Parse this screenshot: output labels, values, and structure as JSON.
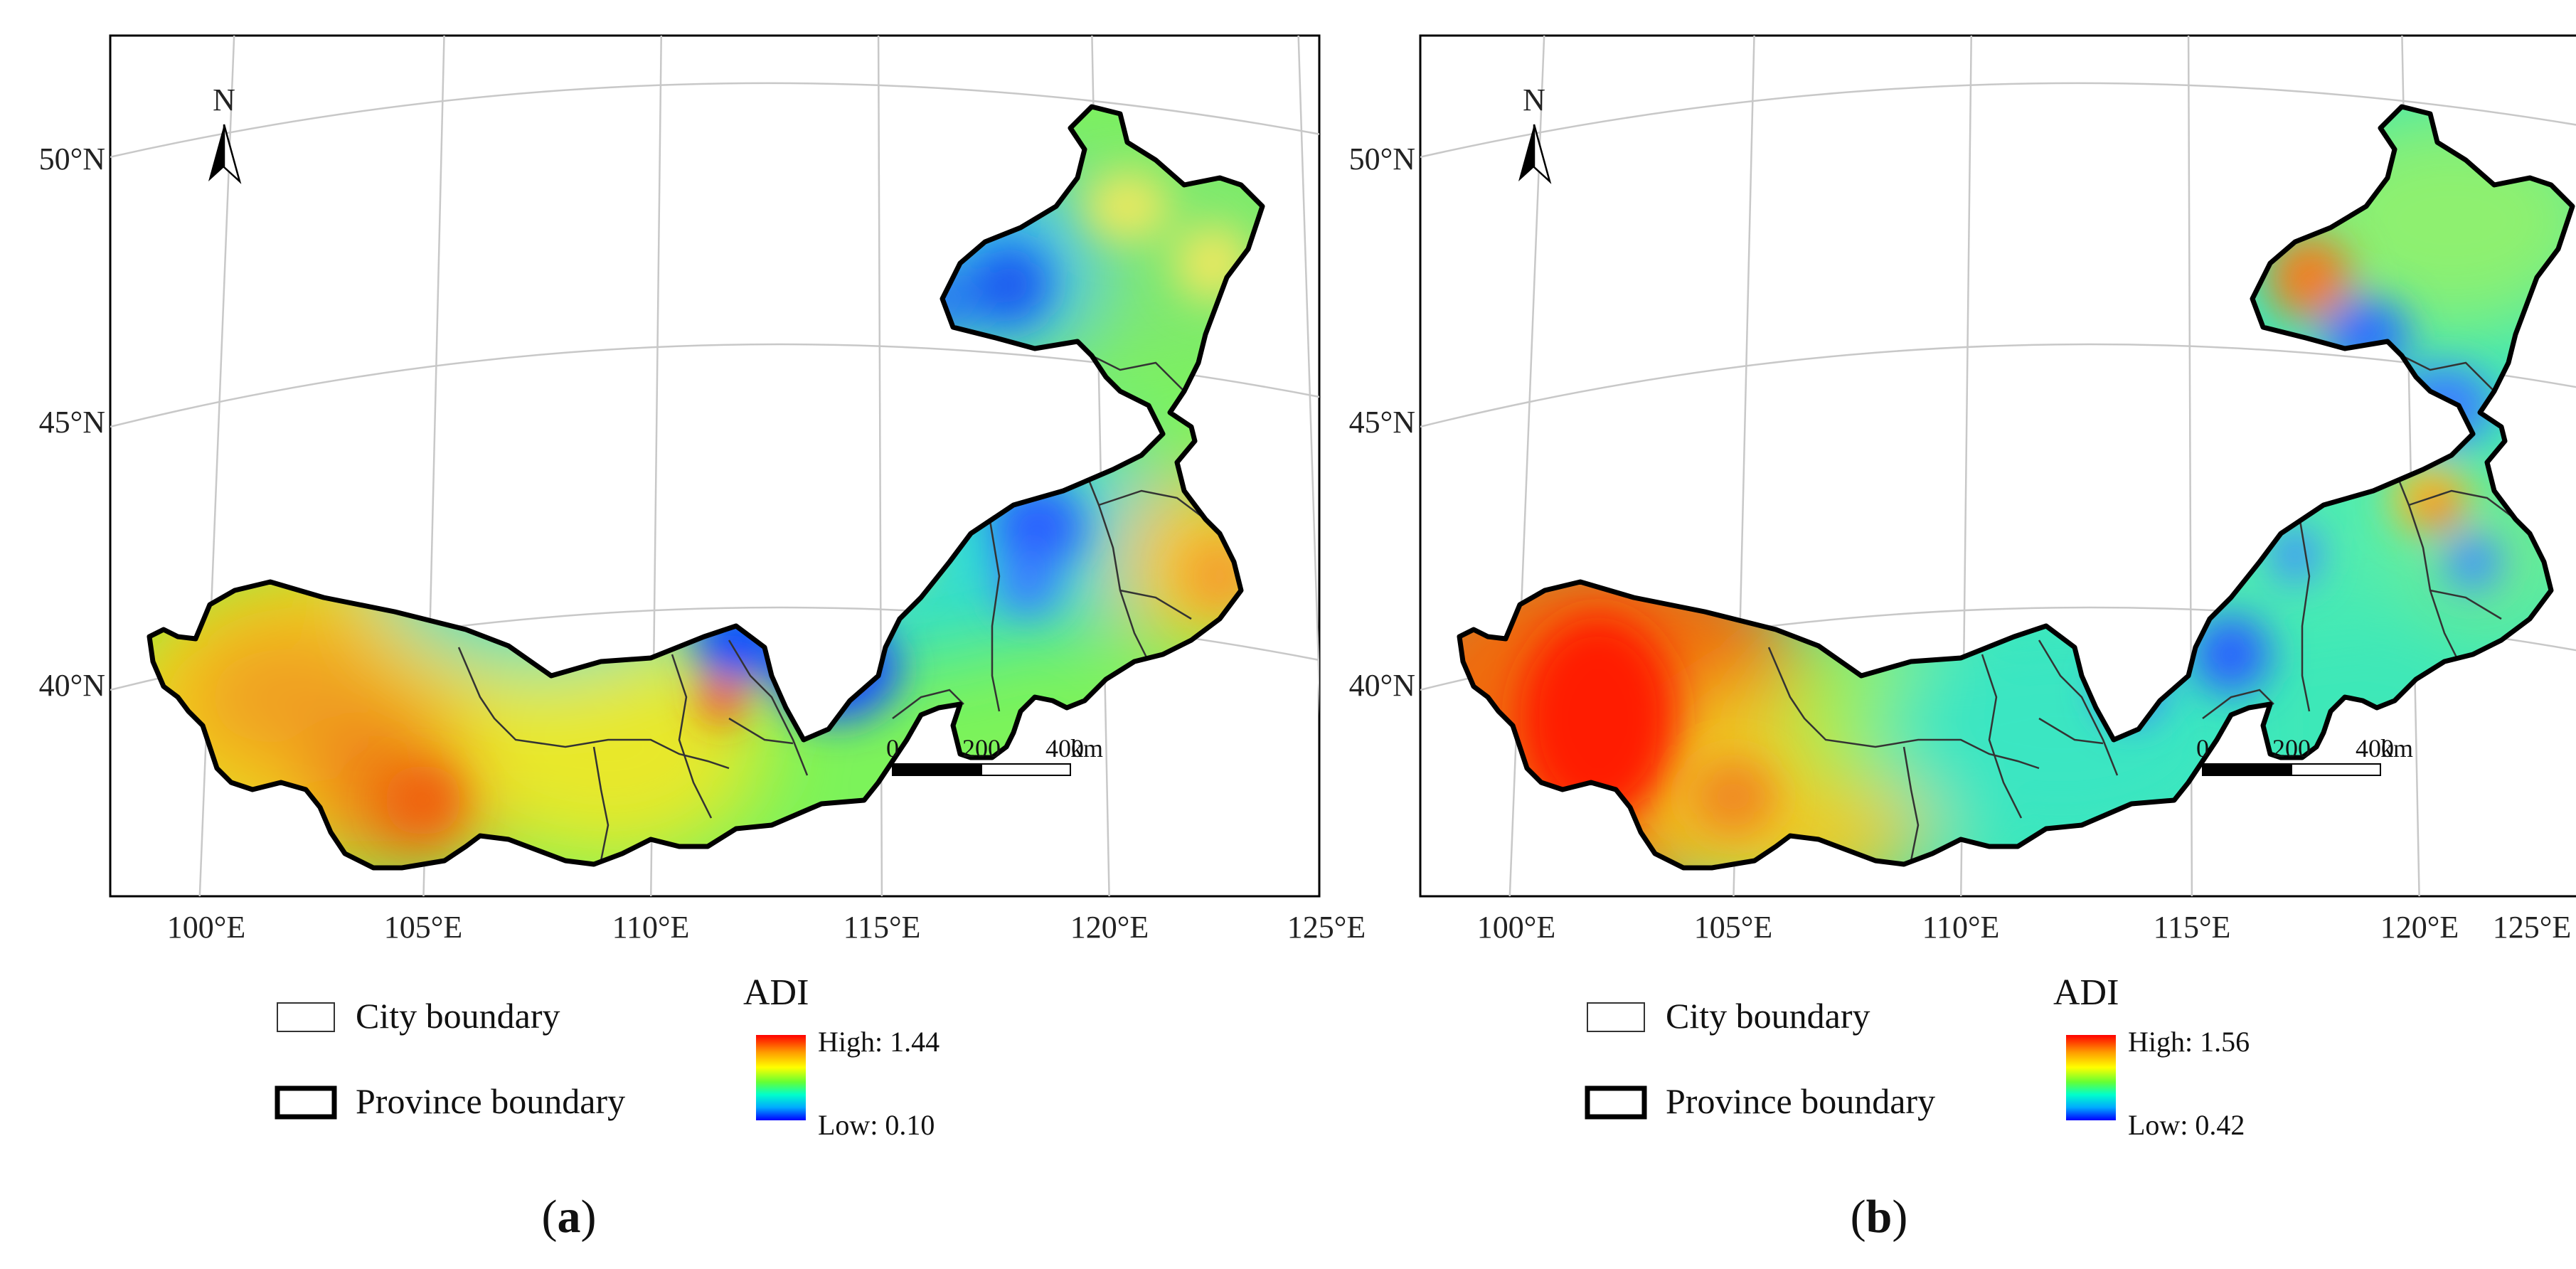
{
  "panels": [
    {
      "id": "a",
      "caption_letter": "a",
      "lat_ticks": [
        "50°N",
        "45°N",
        "40°N"
      ],
      "lon_ticks": [
        "100°E",
        "105°E",
        "110°E",
        "115°E",
        "120°E",
        "125°E"
      ],
      "north_label": "N",
      "scale": {
        "labels": [
          "0",
          "200",
          "400"
        ],
        "unit": "km"
      },
      "legend": {
        "city_label": "City boundary",
        "province_label": "Province boundary",
        "ramp_title": "ADI",
        "high_label": "High: 1.44",
        "low_label": "Low: 0.10",
        "high_value": 1.44,
        "low_value": 0.1
      }
    },
    {
      "id": "b",
      "caption_letter": "b",
      "lat_ticks": [
        "50°N",
        "45°N",
        "40°N"
      ],
      "lon_ticks": [
        "100°E",
        "105°E",
        "110°E",
        "115°E",
        "120°E",
        "125°E"
      ],
      "north_label": "N",
      "scale": {
        "labels": [
          "0",
          "200",
          "400"
        ],
        "unit": "km"
      },
      "legend": {
        "city_label": "City boundary",
        "province_label": "Province boundary",
        "ramp_title": "ADI",
        "high_label": "High: 1.56",
        "low_label": "Low: 0.42",
        "high_value": 1.56,
        "low_value": 0.42
      }
    }
  ],
  "colors": {
    "ramp": [
      "#ff0000",
      "#ff8c00",
      "#ffff00",
      "#7cfc00",
      "#00ffcc",
      "#00bfff",
      "#0000ff"
    ],
    "province_border": "#000000",
    "city_border": "#333333",
    "graticule": "#c8c8c8"
  }
}
